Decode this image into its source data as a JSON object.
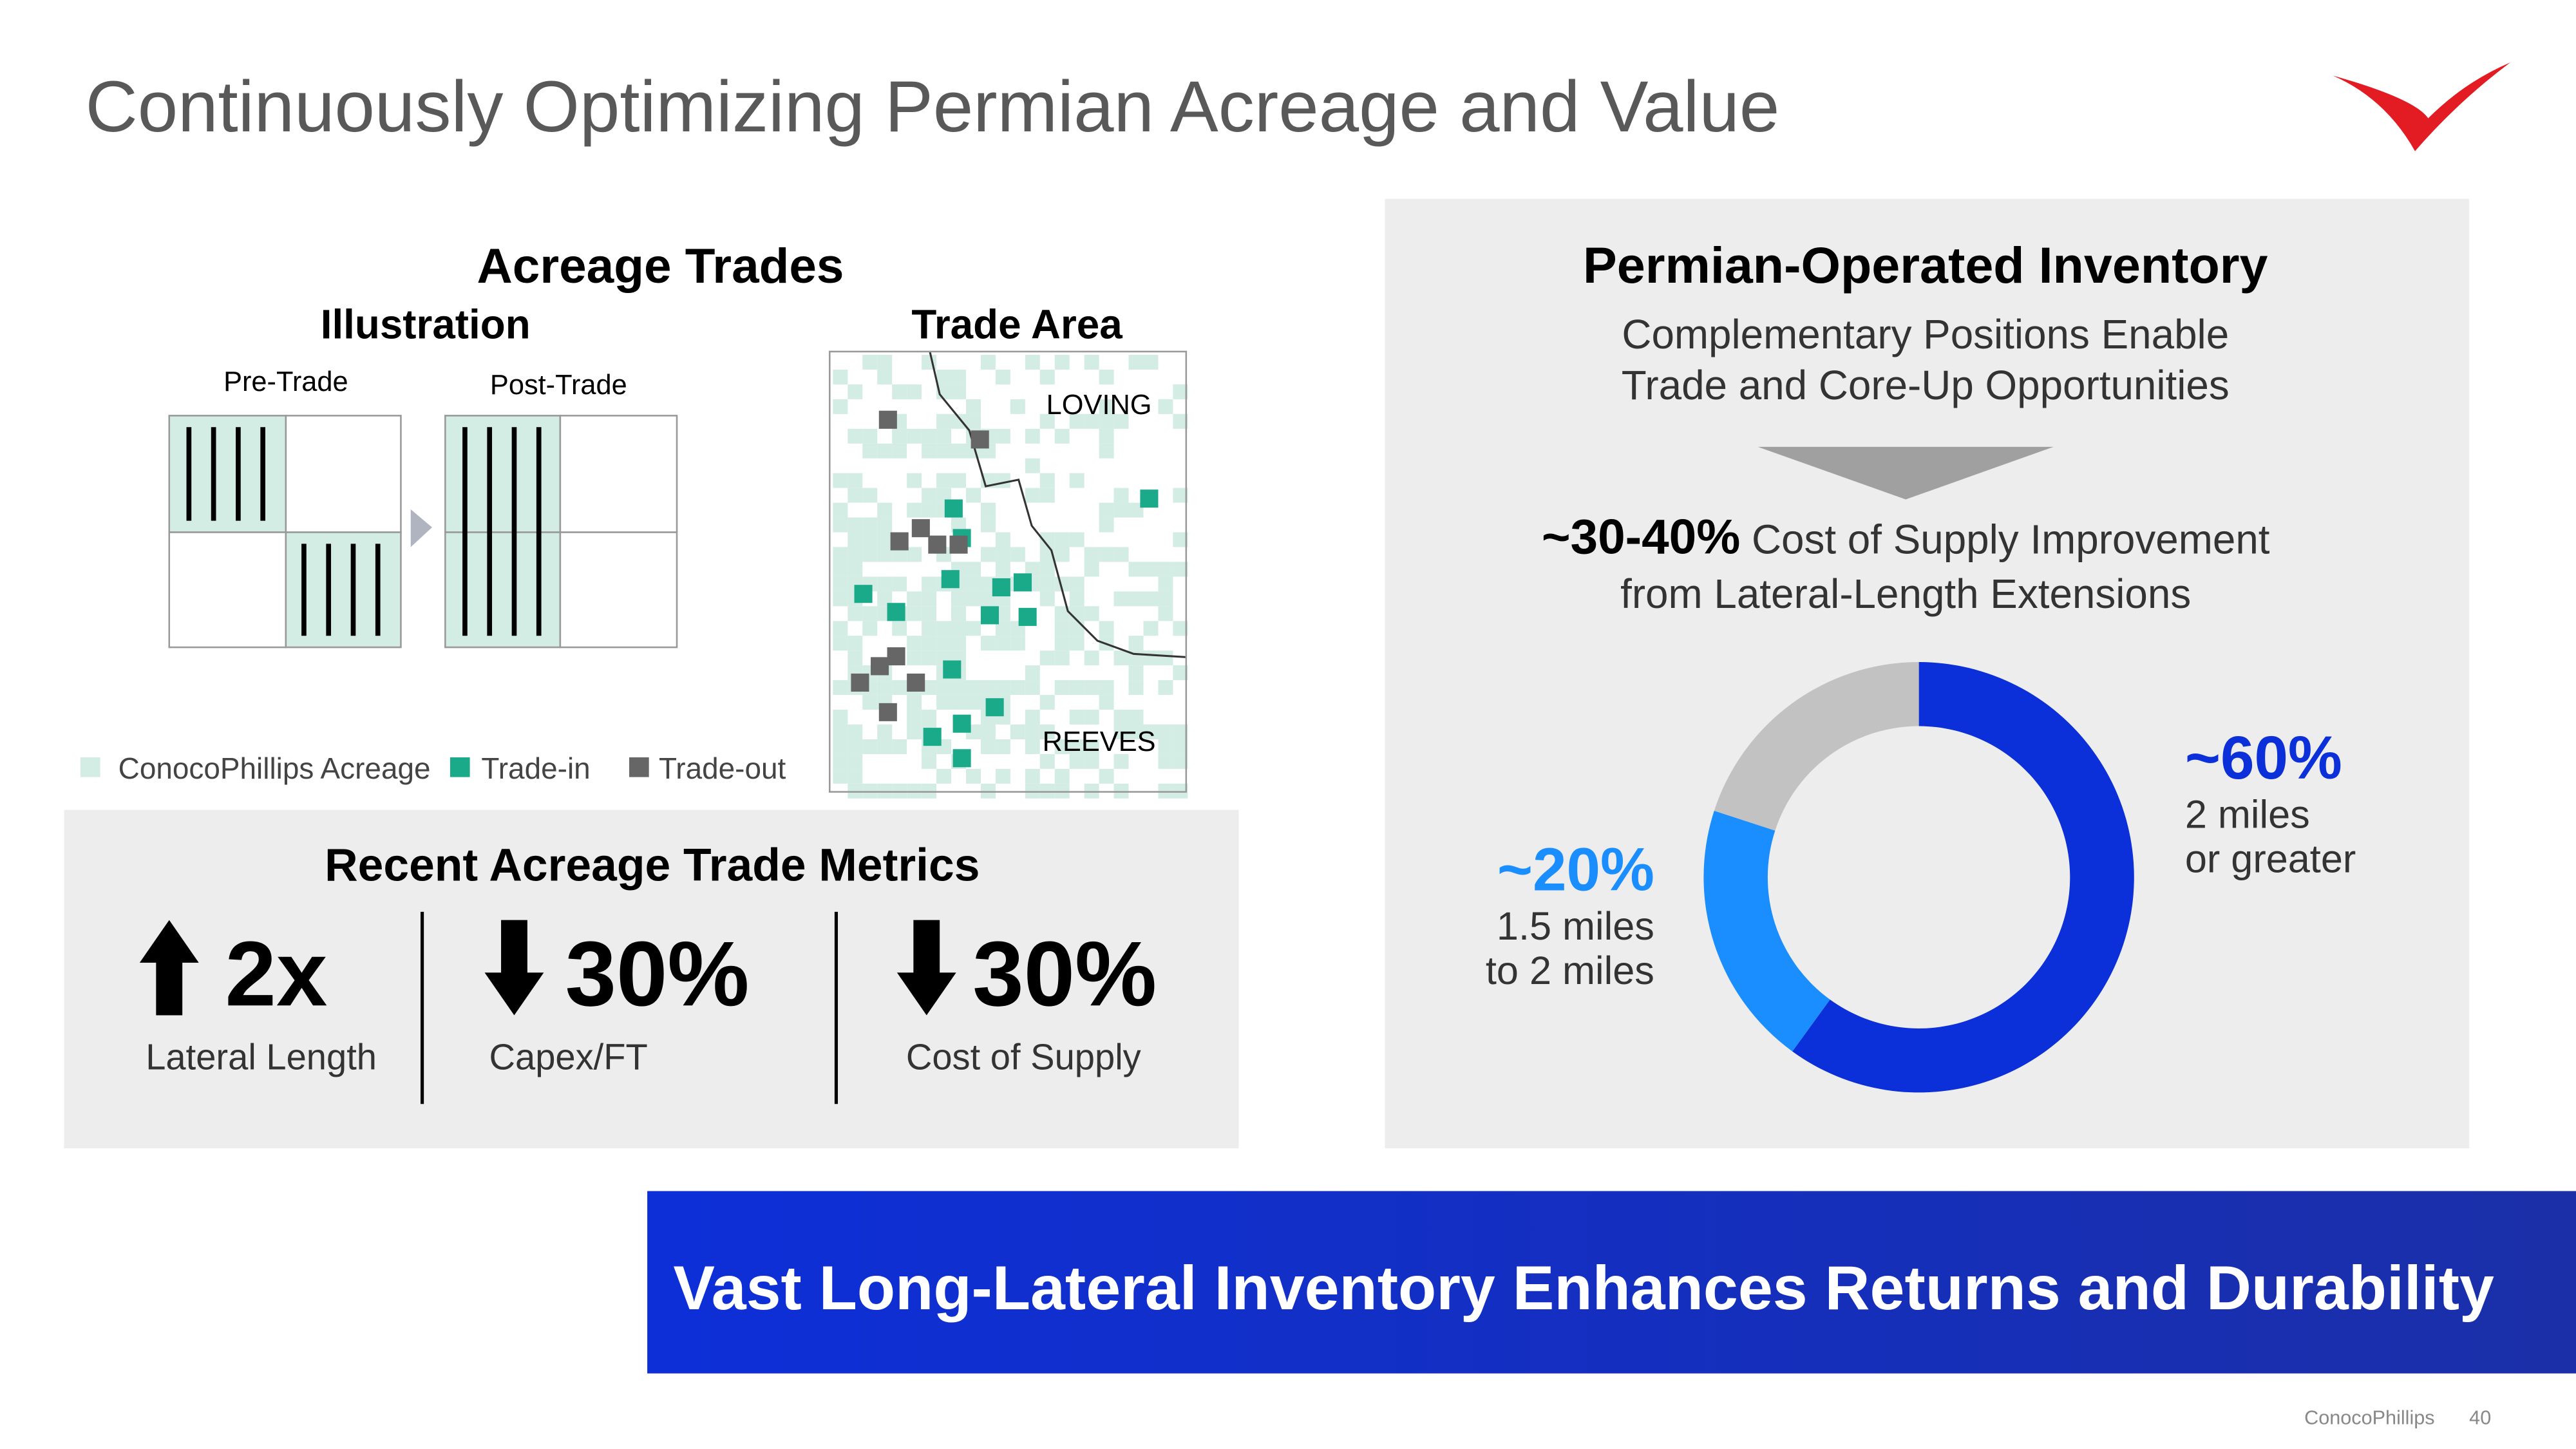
{
  "header": {
    "title": "Continuously Optimizing Permian Acreage and Value"
  },
  "acreage_trades": {
    "title": "Acreage Trades",
    "illustration_title": "Illustration",
    "pre_trade": "Pre-Trade",
    "post_trade": "Post-Trade",
    "trade_area_title": "Trade Area",
    "map_labels": [
      "LOVING",
      "REEVES"
    ],
    "legend": [
      {
        "name": "ConocoPhillips Acreage",
        "color": "#d3ece4"
      },
      {
        "name": "Trade-in",
        "color": "#1aaa8a"
      },
      {
        "name": "Trade-out",
        "color": "#666666"
      }
    ]
  },
  "metrics": {
    "title": "Recent Acreage Trade Metrics",
    "items": [
      {
        "figure": "2x",
        "label": "Lateral Length",
        "direction": "up"
      },
      {
        "figure": "30%",
        "label": "Capex/FT",
        "direction": "down"
      },
      {
        "figure": "30%",
        "label": "Cost of Supply",
        "direction": "down"
      }
    ]
  },
  "inventory": {
    "title": "Permian-Operated Inventory",
    "subtitle_lines": [
      "Complementary Positions Enable",
      "Trade and Core-Up Opportunities"
    ],
    "highlight": "~30-40%",
    "highlight_text": "Cost of Supply Improvement",
    "highlight_text_line2": "from Lateral-Length Extensions",
    "chart_data": {
      "type": "donut",
      "values": [
        60,
        20,
        20
      ],
      "value_labels": [
        "~60%",
        "~20%",
        null
      ],
      "categories": [
        [
          "2 miles",
          "or greater"
        ],
        [
          "1.5 miles",
          "to 2 miles"
        ],
        null
      ],
      "colors": [
        "#0b2fd8",
        "#1a8dff",
        "#c2c2c2"
      ]
    }
  },
  "banner": {
    "text": "Vast Long-Lateral Inventory Enhances Returns and Durability"
  },
  "footer": {
    "company": "ConocoPhillips",
    "page": "40"
  }
}
